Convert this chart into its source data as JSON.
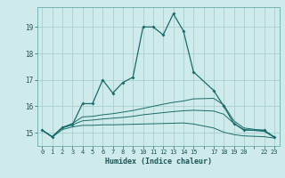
{
  "xlabel": "Humidex (Indice chaleur)",
  "background_color": "#ceeaea",
  "grid_color": "#aacece",
  "line_color": "#1a6b6b",
  "xlim": [
    -0.5,
    23.5
  ],
  "ylim": [
    14.5,
    19.75
  ],
  "yticks": [
    15,
    16,
    17,
    18,
    19
  ],
  "xtick_positions": [
    0,
    1,
    2,
    3,
    4,
    5,
    6,
    7,
    8,
    9,
    10,
    11,
    12,
    13,
    14,
    15,
    16,
    17,
    18,
    19,
    20,
    21,
    22,
    23
  ],
  "xtick_labels": [
    "0",
    "1",
    "2",
    "3",
    "4",
    "5",
    "6",
    "7",
    "8",
    "9",
    "10",
    "11",
    "12",
    "13",
    "14",
    "15",
    "",
    "17",
    "18",
    "19",
    "20",
    "",
    "22",
    "23"
  ],
  "hours": [
    0,
    1,
    2,
    3,
    4,
    5,
    6,
    7,
    8,
    9,
    10,
    11,
    12,
    13,
    14,
    15,
    17,
    18,
    19,
    20,
    22,
    23
  ],
  "line_main": [
    15.1,
    14.85,
    15.2,
    15.3,
    16.1,
    16.1,
    17.0,
    16.5,
    16.9,
    17.1,
    19.0,
    19.0,
    18.7,
    19.5,
    18.85,
    17.3,
    16.6,
    16.0,
    15.35,
    15.1,
    15.1,
    14.83
  ],
  "line_high": [
    15.1,
    14.85,
    15.2,
    15.35,
    15.6,
    15.62,
    15.68,
    15.72,
    15.78,
    15.84,
    15.92,
    16.0,
    16.08,
    16.15,
    16.2,
    16.28,
    16.3,
    16.05,
    15.45,
    15.18,
    15.08,
    14.85
  ],
  "line_mid": [
    15.1,
    14.85,
    15.18,
    15.3,
    15.45,
    15.48,
    15.52,
    15.55,
    15.58,
    15.62,
    15.68,
    15.72,
    15.76,
    15.8,
    15.83,
    15.85,
    15.82,
    15.7,
    15.35,
    15.12,
    15.05,
    14.83
  ],
  "line_low": [
    15.1,
    14.83,
    15.12,
    15.22,
    15.28,
    15.28,
    15.3,
    15.3,
    15.31,
    15.32,
    15.33,
    15.34,
    15.35,
    15.36,
    15.37,
    15.33,
    15.18,
    15.02,
    14.93,
    14.88,
    14.85,
    14.8
  ]
}
